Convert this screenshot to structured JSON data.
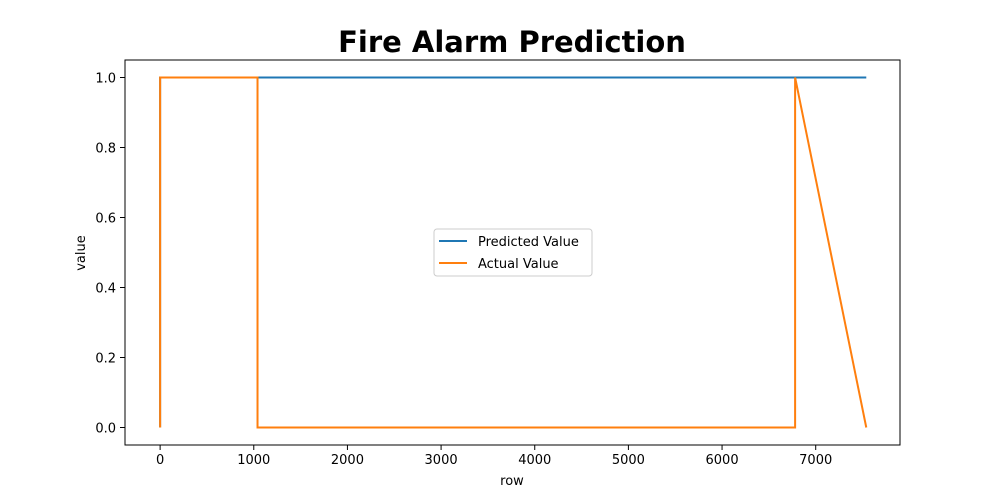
{
  "chart_data": {
    "type": "line",
    "title": "Fire Alarm Prediction",
    "xlabel": "row",
    "ylabel": "value",
    "xlim": [
      -375,
      7900
    ],
    "ylim": [
      -0.05,
      1.05
    ],
    "xticks": [
      0,
      1000,
      2000,
      3000,
      4000,
      5000,
      6000,
      7000
    ],
    "yticks": [
      0.0,
      0.2,
      0.4,
      0.6,
      0.8,
      1.0
    ],
    "xtick_labels": [
      "0",
      "1000",
      "2000",
      "3000",
      "4000",
      "5000",
      "6000",
      "7000"
    ],
    "ytick_labels": [
      "0.0",
      "0.2",
      "0.4",
      "0.6",
      "0.8",
      "1.0"
    ],
    "grid": false,
    "legend_position": "center",
    "series": [
      {
        "name": "Predicted Value",
        "color": "#1f77b4",
        "x": [
          0,
          0,
          7540
        ],
        "y": [
          0,
          1,
          1
        ]
      },
      {
        "name": "Actual Value",
        "color": "#ff7f0e",
        "x": [
          0,
          0,
          1040,
          1040,
          6780,
          6780,
          7540
        ],
        "y": [
          0,
          1,
          1,
          0,
          0,
          1,
          0
        ]
      }
    ]
  }
}
